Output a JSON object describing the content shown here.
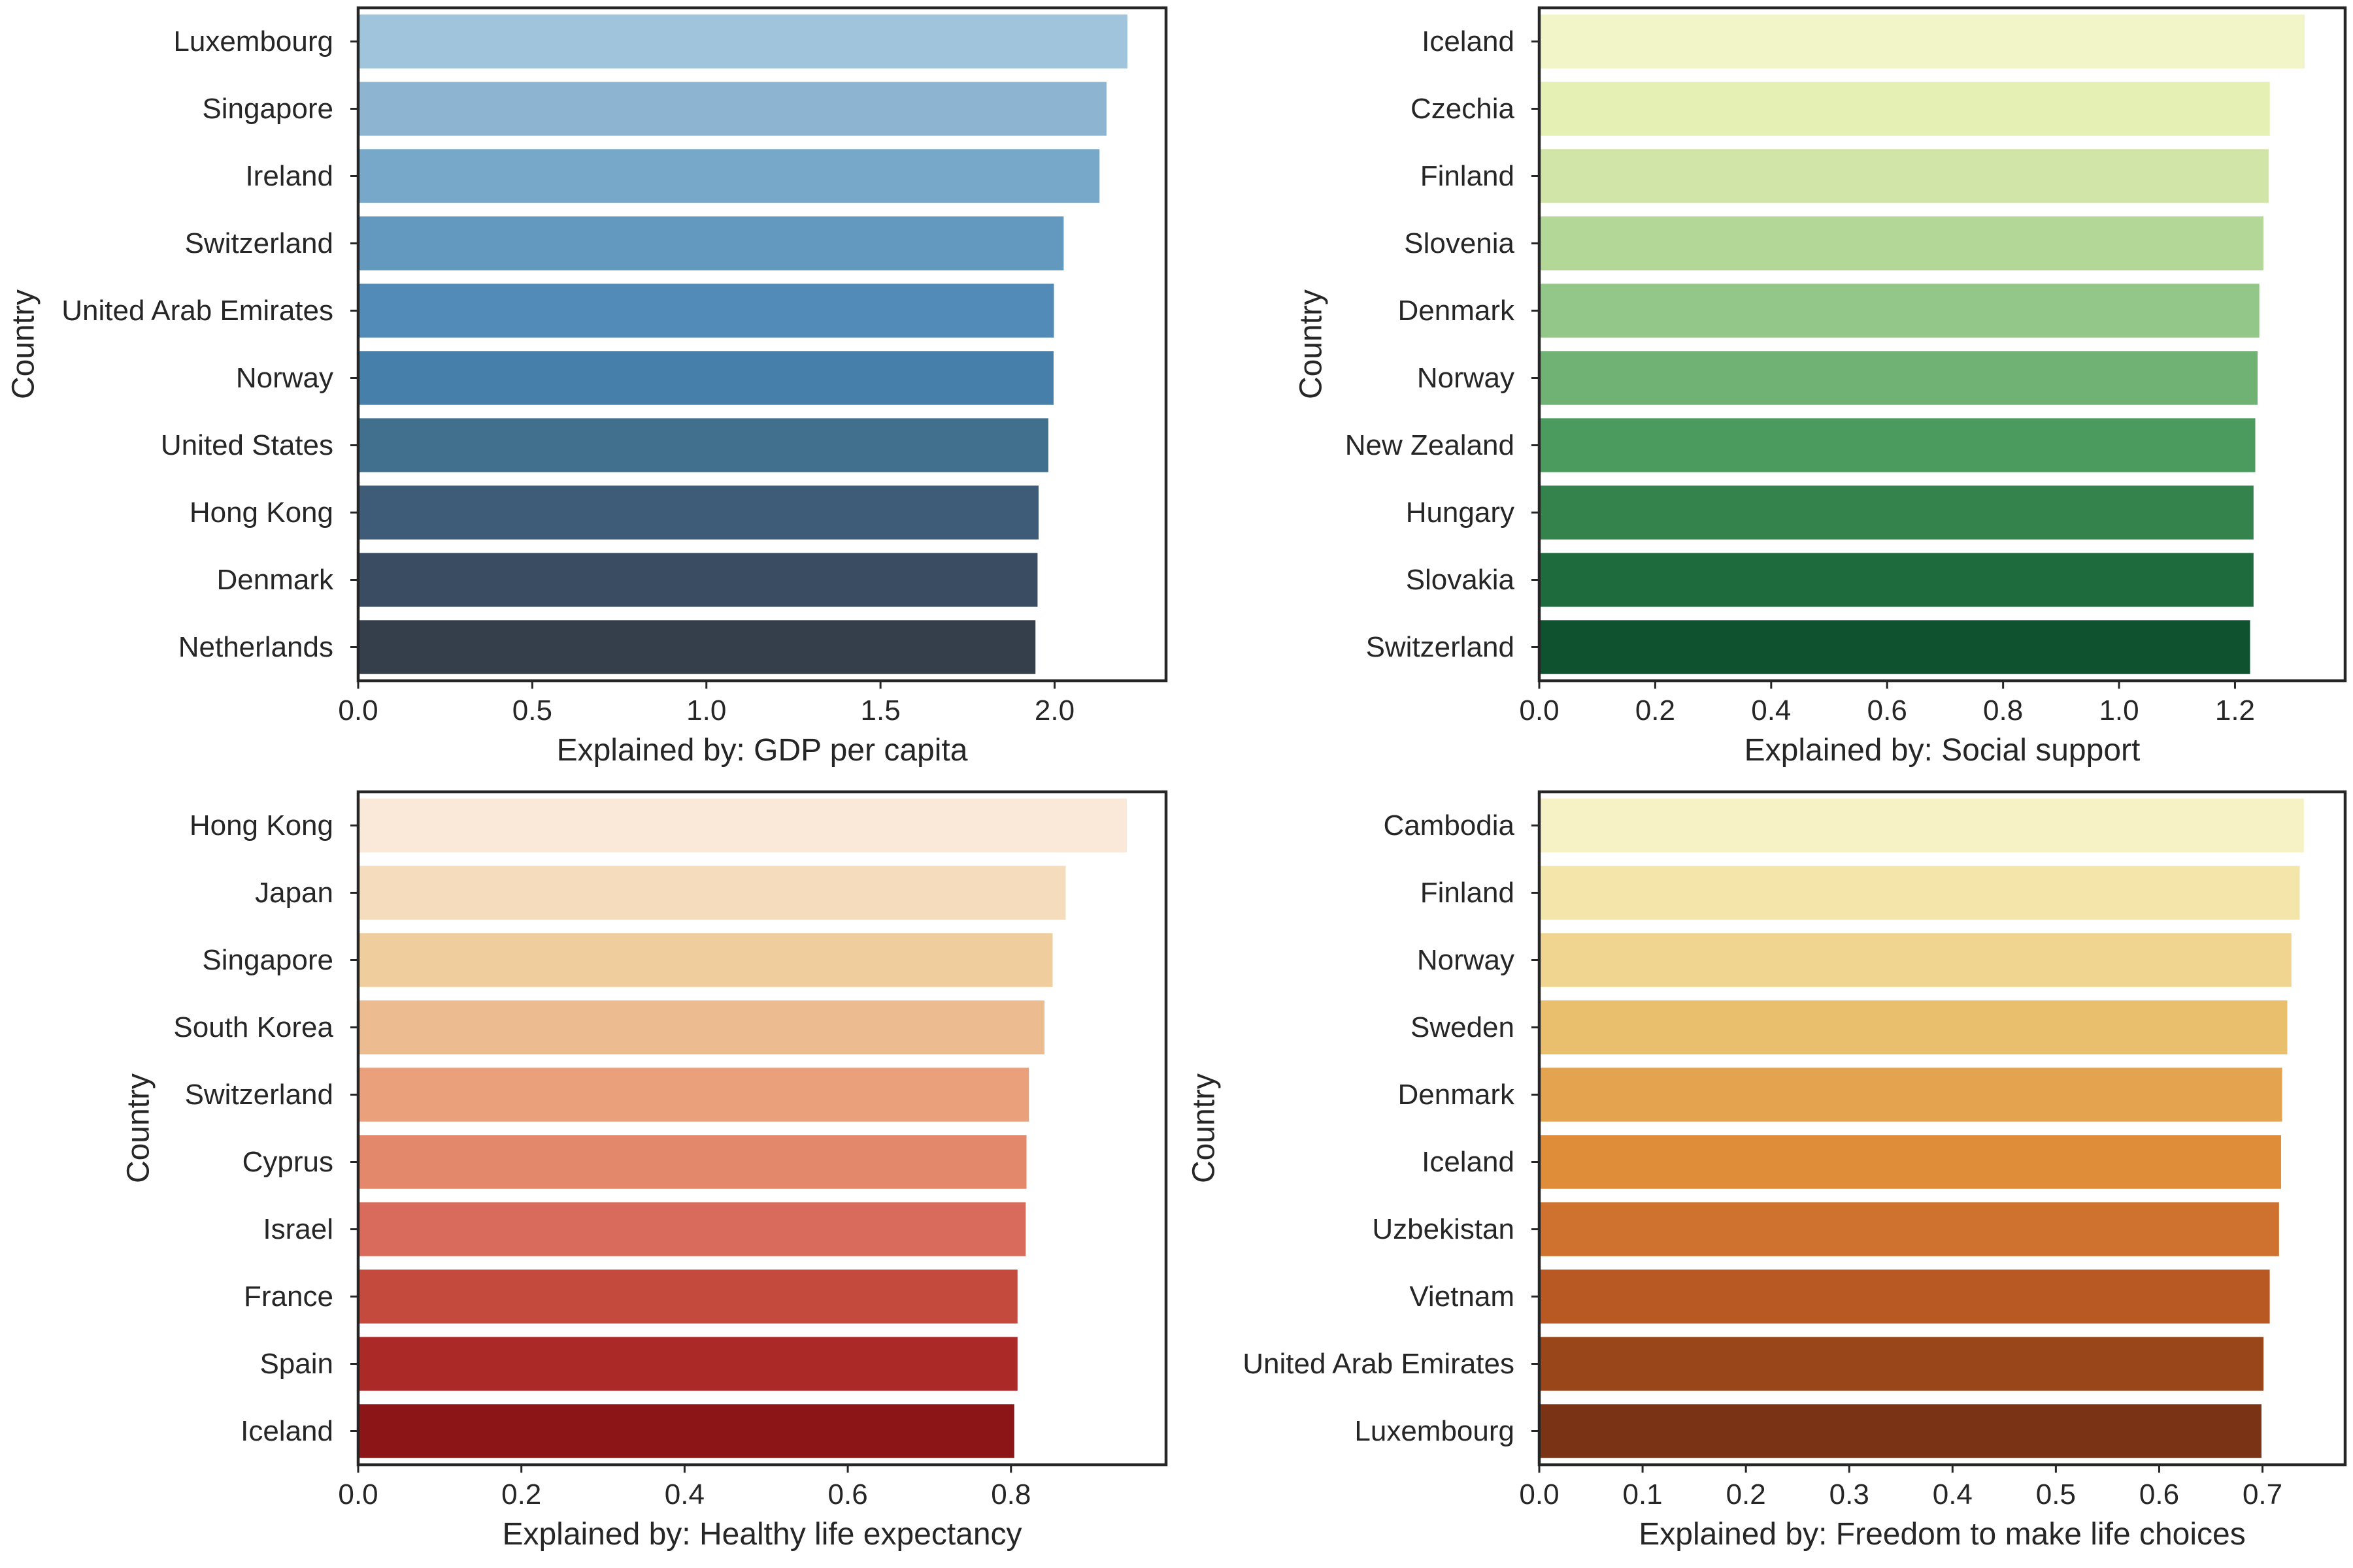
{
  "chart_data": [
    {
      "type": "bar",
      "orientation": "horizontal",
      "categories": [
        "Luxembourg",
        "Singapore",
        "Ireland",
        "Switzerland",
        "United Arab Emirates",
        "Norway",
        "United States",
        "Hong Kong",
        "Denmark",
        "Netherlands"
      ],
      "values": [
        2.209,
        2.149,
        2.129,
        2.026,
        1.998,
        1.997,
        1.982,
        1.954,
        1.951,
        1.945
      ],
      "colors": [
        "#a0c4db",
        "#8db5d1",
        "#78a8c9",
        "#6399bf",
        "#528bb8",
        "#4680aa",
        "#41708f",
        "#3e5c78",
        "#3a4c62",
        "#353f4b"
      ],
      "title": "",
      "xlabel": "Explained by: GDP per capita",
      "ylabel": "Country",
      "xlim": [
        0,
        2.32
      ],
      "xticks": [
        "0.0",
        "0.5",
        "1.0",
        "1.5",
        "2.0"
      ],
      "grid": false
    },
    {
      "type": "bar",
      "orientation": "horizontal",
      "categories": [
        "Iceland",
        "Czechia",
        "Finland",
        "Slovenia",
        "Denmark",
        "Norway",
        "New Zealand",
        "Hungary",
        "Slovakia",
        "Switzerland"
      ],
      "values": [
        1.32,
        1.26,
        1.258,
        1.249,
        1.242,
        1.239,
        1.235,
        1.232,
        1.232,
        1.226
      ],
      "colors": [
        "#f1f5c8",
        "#e5f0b5",
        "#d2e5a8",
        "#b2d796",
        "#93c689",
        "#6fb274",
        "#4b9b5e",
        "#34834c",
        "#1e6b3e",
        "#0e5230"
      ],
      "title": "",
      "xlabel": "Explained by: Social support",
      "ylabel": "Country",
      "xlim": [
        0,
        1.39
      ],
      "xticks": [
        "0.0",
        "0.2",
        "0.4",
        "0.6",
        "0.8",
        "1.0",
        "1.2"
      ],
      "grid": false
    },
    {
      "type": "bar",
      "orientation": "horizontal",
      "categories": [
        "Hong Kong",
        "Japan",
        "Singapore",
        "South Korea",
        "Switzerland",
        "Cyprus",
        "Israel",
        "France",
        "Spain",
        "Iceland"
      ],
      "values": [
        0.942,
        0.867,
        0.851,
        0.841,
        0.822,
        0.819,
        0.818,
        0.808,
        0.808,
        0.804
      ],
      "colors": [
        "#fae9d9",
        "#f5dcbc",
        "#f0cd9d",
        "#ecbb8f",
        "#e9a07b",
        "#e3886a",
        "#d86b5b",
        "#c44a3e",
        "#ab2927",
        "#8c1517"
      ],
      "title": "",
      "xlabel": "Explained by: Healthy life expectancy",
      "ylabel": "Country",
      "xlim": [
        0,
        0.99
      ],
      "xticks": [
        "0.0",
        "0.2",
        "0.4",
        "0.6",
        "0.8"
      ],
      "grid": false
    },
    {
      "type": "bar",
      "orientation": "horizontal",
      "categories": [
        "Cambodia",
        "Finland",
        "Norway",
        "Sweden",
        "Denmark",
        "Iceland",
        "Uzbekistan",
        "Vietnam",
        "United Arab Emirates",
        "Luxembourg"
      ],
      "values": [
        0.74,
        0.736,
        0.728,
        0.724,
        0.719,
        0.718,
        0.716,
        0.707,
        0.701,
        0.699
      ],
      "colors": [
        "#f7f2c6",
        "#f4e5ab",
        "#efd590",
        "#e9be6c",
        "#e4a34e",
        "#df8d38",
        "#cf712f",
        "#b85822",
        "#9a461b",
        "#7a3415"
      ],
      "title": "",
      "xlabel": "Explained by: Freedom to make life choices",
      "ylabel": "Country",
      "xlim": [
        0,
        0.78
      ],
      "xticks": [
        "0.0",
        "0.1",
        "0.2",
        "0.3",
        "0.4",
        "0.5",
        "0.6",
        "0.7"
      ],
      "grid": false
    }
  ]
}
